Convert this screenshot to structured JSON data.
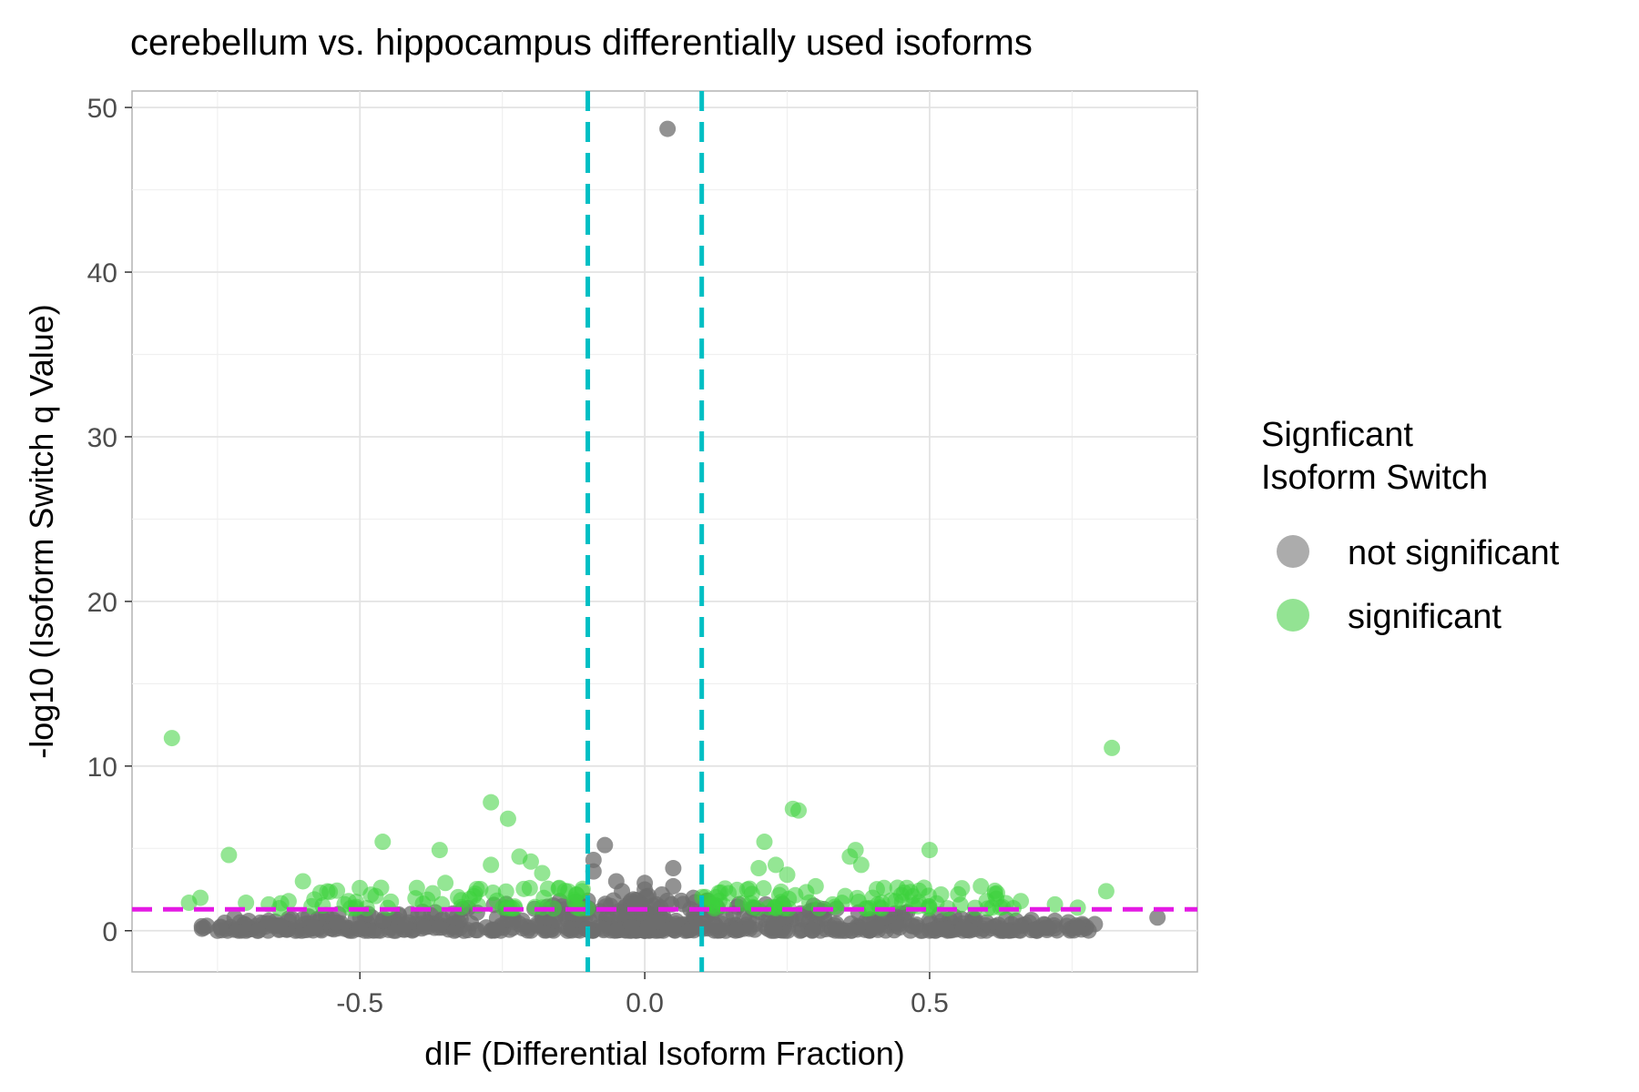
{
  "chart_data": {
    "type": "scatter",
    "title": "cerebellum vs. hippocampus differentially used isoforms",
    "xlabel": "dIF (Differential Isoform Fraction)",
    "ylabel": "-log10 (Isoform Switch q Value)",
    "xlim": [
      -0.9,
      0.97
    ],
    "ylim": [
      -2.5,
      51
    ],
    "x_ticks": [
      -0.5,
      0.0,
      0.5
    ],
    "x_tick_labels": [
      "-0.5",
      "0.0",
      "0.5"
    ],
    "y_ticks": [
      0,
      10,
      20,
      30,
      40,
      50
    ],
    "y_tick_labels": [
      "0",
      "10",
      "20",
      "30",
      "40",
      "50"
    ],
    "grid": true,
    "legend": {
      "title_lines": [
        "Signficant",
        "Isoform Switch"
      ],
      "placement": "right",
      "entries": [
        {
          "label": "not significant",
          "color": "#9e9e9e"
        },
        {
          "label": "significant",
          "color": "#6fd96f"
        }
      ]
    },
    "reference_lines": [
      {
        "orientation": "vertical",
        "value": -0.1,
        "color": "#00bfc4",
        "style": "dashed"
      },
      {
        "orientation": "vertical",
        "value": 0.1,
        "color": "#00bfc4",
        "style": "dashed"
      },
      {
        "orientation": "horizontal",
        "value": 1.3,
        "color": "#e41ae4",
        "style": "dashed"
      }
    ],
    "colors": {
      "not_significant": "#6e6e6e",
      "significant": "#3dd13d"
    },
    "series": [
      {
        "name": "not significant",
        "points": [
          {
            "x": 0.04,
            "y": 48.7
          },
          {
            "x": -0.09,
            "y": 4.3
          },
          {
            "x": -0.09,
            "y": 3.6
          },
          {
            "x": -0.07,
            "y": 5.2
          },
          {
            "x": -0.05,
            "y": 3.0
          },
          {
            "x": -0.04,
            "y": 2.4
          },
          {
            "x": 0.0,
            "y": 2.9
          },
          {
            "x": 0.0,
            "y": 2.5
          },
          {
            "x": 0.05,
            "y": 3.8
          },
          {
            "x": 0.05,
            "y": 2.7
          },
          {
            "x": 0.03,
            "y": 2.2
          },
          {
            "x": -0.02,
            "y": 1.9
          },
          {
            "x": 0.02,
            "y": 1.6
          },
          {
            "x": -0.06,
            "y": 1.5
          },
          {
            "x": 0.08,
            "y": 1.3
          },
          {
            "x": 0.9,
            "y": 0.8
          },
          {
            "x": 0.79,
            "y": 0.4
          },
          {
            "x": 0.76,
            "y": 0.2
          },
          {
            "x": 0.72,
            "y": 0.6
          },
          {
            "x": 0.66,
            "y": 0.3
          },
          {
            "x": 0.63,
            "y": 0.0
          },
          {
            "x": 0.6,
            "y": 0.5
          },
          {
            "x": 0.56,
            "y": 0.2
          },
          {
            "x": 0.52,
            "y": 0.1
          },
          {
            "x": -0.72,
            "y": 0.8
          },
          {
            "x": -0.7,
            "y": 0.0
          },
          {
            "x": -0.68,
            "y": 0.0
          },
          {
            "x": -0.66,
            "y": 0.6
          },
          {
            "x": -0.64,
            "y": 0.3
          },
          {
            "x": -0.6,
            "y": 0.7
          },
          {
            "x": -0.58,
            "y": 0.2
          },
          {
            "x": -0.54,
            "y": 0.5
          },
          {
            "x": -0.5,
            "y": 0.1
          },
          {
            "x": -0.46,
            "y": 0.6
          },
          {
            "x": -0.42,
            "y": 0.4
          }
        ]
      },
      {
        "name": "significant",
        "points": [
          {
            "x": -0.83,
            "y": 11.7
          },
          {
            "x": 0.82,
            "y": 11.1
          },
          {
            "x": -0.27,
            "y": 7.8
          },
          {
            "x": -0.24,
            "y": 6.8
          },
          {
            "x": 0.26,
            "y": 7.4
          },
          {
            "x": 0.27,
            "y": 7.3
          },
          {
            "x": -0.46,
            "y": 5.4
          },
          {
            "x": -0.36,
            "y": 4.9
          },
          {
            "x": -0.73,
            "y": 4.6
          },
          {
            "x": 0.21,
            "y": 5.4
          },
          {
            "x": 0.37,
            "y": 4.9
          },
          {
            "x": 0.5,
            "y": 4.9
          },
          {
            "x": 0.36,
            "y": 4.5
          },
          {
            "x": 0.38,
            "y": 4.0
          },
          {
            "x": -0.22,
            "y": 4.5
          },
          {
            "x": -0.2,
            "y": 4.2
          },
          {
            "x": -0.27,
            "y": 4.0
          },
          {
            "x": 0.2,
            "y": 3.8
          },
          {
            "x": 0.23,
            "y": 4.0
          },
          {
            "x": 0.25,
            "y": 3.4
          },
          {
            "x": -0.18,
            "y": 3.5
          },
          {
            "x": -0.6,
            "y": 3.0
          },
          {
            "x": -0.35,
            "y": 2.9
          },
          {
            "x": 0.59,
            "y": 2.7
          },
          {
            "x": 0.42,
            "y": 2.6
          },
          {
            "x": 0.46,
            "y": 2.6
          },
          {
            "x": 0.81,
            "y": 2.4
          },
          {
            "x": -0.78,
            "y": 2.0
          },
          {
            "x": -0.8,
            "y": 1.7
          },
          {
            "x": -0.58,
            "y": 1.9
          },
          {
            "x": -0.52,
            "y": 1.8
          },
          {
            "x": 0.52,
            "y": 2.2
          },
          {
            "x": 0.6,
            "y": 1.8
          },
          {
            "x": 0.66,
            "y": 1.8
          },
          {
            "x": 0.72,
            "y": 1.6
          },
          {
            "x": 0.76,
            "y": 1.4
          },
          {
            "x": -0.7,
            "y": 1.7
          },
          {
            "x": -0.66,
            "y": 1.6
          },
          {
            "x": -0.4,
            "y": 2.6
          },
          {
            "x": -0.3,
            "y": 2.1
          },
          {
            "x": -0.15,
            "y": 2.6
          },
          {
            "x": -0.12,
            "y": 2.2
          },
          {
            "x": 0.13,
            "y": 2.3
          },
          {
            "x": 0.18,
            "y": 2.5
          },
          {
            "x": 0.3,
            "y": 2.7
          },
          {
            "x": 0.33,
            "y": 1.6
          },
          {
            "x": 0.4,
            "y": 2.0
          },
          {
            "x": 0.44,
            "y": 1.8
          }
        ]
      }
    ]
  }
}
